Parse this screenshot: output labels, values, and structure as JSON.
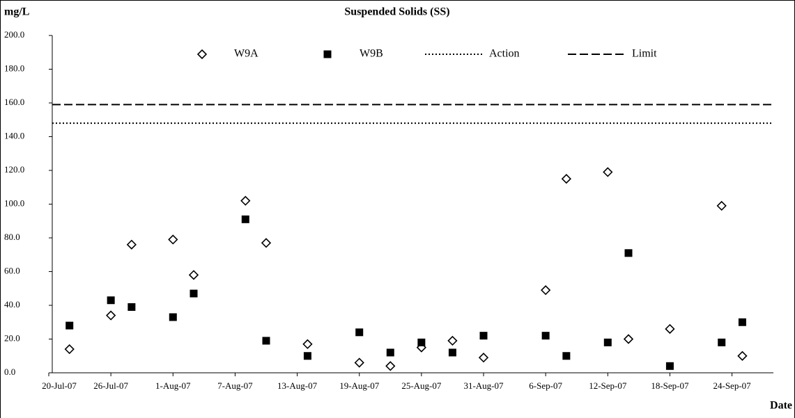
{
  "chart_data": {
    "type": "scatter",
    "title": "Suspended Solids (SS)",
    "y_label": "mg/L",
    "x_label": "Date",
    "x": [
      "2007-07-22",
      "2007-07-26",
      "2007-07-28",
      "2007-08-01",
      "2007-08-03",
      "2007-08-08",
      "2007-08-10",
      "2007-08-14",
      "2007-08-19",
      "2007-08-22",
      "2007-08-25",
      "2007-08-28",
      "2007-08-31",
      "2007-09-06",
      "2007-09-08",
      "2007-09-12",
      "2007-09-14",
      "2007-09-18",
      "2007-09-23",
      "2007-09-25"
    ],
    "series": [
      {
        "name": "W9A",
        "marker": "diamond",
        "color": "#000000",
        "values": [
          14,
          34,
          76,
          79,
          58,
          102,
          77,
          17,
          6,
          4,
          15,
          19,
          9,
          49,
          115,
          119,
          20,
          26,
          99,
          10
        ]
      },
      {
        "name": "W9B",
        "marker": "square",
        "color": "#000000",
        "values": [
          28,
          43,
          39,
          33,
          47,
          91,
          19,
          10,
          24,
          12,
          18,
          12,
          22,
          22,
          10,
          18,
          71,
          4,
          18,
          30
        ]
      }
    ],
    "reference_lines": [
      {
        "name": "Action",
        "value": 148,
        "dash": "dotted"
      },
      {
        "name": "Limit",
        "value": 159,
        "dash": "dashed"
      }
    ],
    "xlim": [
      "2007-07-20",
      "2007-09-28"
    ],
    "ylim": [
      0,
      200
    ],
    "yticks": [
      {
        "value": 0,
        "label": "0.0"
      },
      {
        "value": 20,
        "label": "20.0"
      },
      {
        "value": 40,
        "label": "40.0"
      },
      {
        "value": 60,
        "label": "60.0"
      },
      {
        "value": 80,
        "label": "80.0"
      },
      {
        "value": 100,
        "label": "100.0"
      },
      {
        "value": 120,
        "label": "120.0"
      },
      {
        "value": 140,
        "label": "140.0"
      },
      {
        "value": 160,
        "label": "160.0"
      },
      {
        "value": 180,
        "label": "180.0"
      },
      {
        "value": 200,
        "label": "200.0"
      }
    ],
    "xticks": [
      {
        "value": "2007-07-20",
        "label": "20-Jul-07"
      },
      {
        "value": "2007-07-26",
        "label": "26-Jul-07"
      },
      {
        "value": "2007-08-01",
        "label": "1-Aug-07"
      },
      {
        "value": "2007-08-07",
        "label": "7-Aug-07"
      },
      {
        "value": "2007-08-13",
        "label": "13-Aug-07"
      },
      {
        "value": "2007-08-19",
        "label": "19-Aug-07"
      },
      {
        "value": "2007-08-25",
        "label": "25-Aug-07"
      },
      {
        "value": "2007-08-31",
        "label": "31-Aug-07"
      },
      {
        "value": "2007-09-06",
        "label": "6-Sep-07"
      },
      {
        "value": "2007-09-12",
        "label": "12-Sep-07"
      },
      {
        "value": "2007-09-18",
        "label": "18-Sep-07"
      },
      {
        "value": "2007-09-24",
        "label": "24-Sep-07"
      }
    ],
    "grid": false
  }
}
